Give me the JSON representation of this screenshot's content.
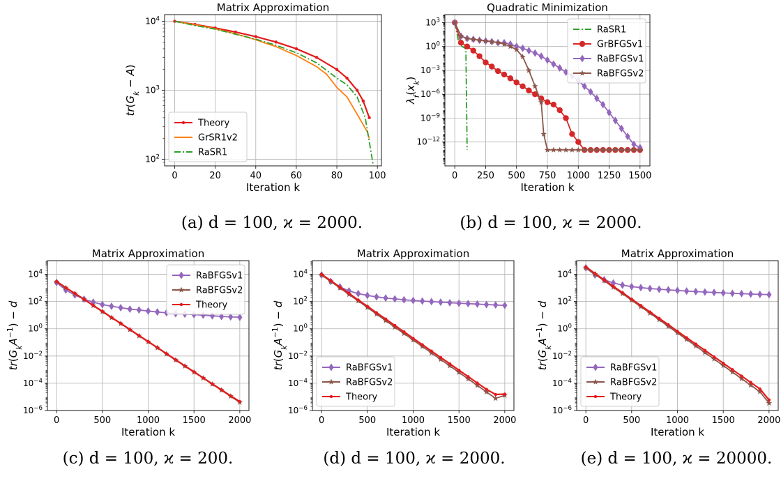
{
  "chart_data": [
    {
      "type": "line",
      "title": "Matrix Approximation",
      "xlabel": "Iteration k",
      "ylabel": "tr(G_k − A)",
      "xlim": [
        -5,
        102
      ],
      "ylim": [
        80,
        12500
      ],
      "yscale": "log",
      "xticks": [
        0,
        20,
        40,
        60,
        80,
        100
      ],
      "yticks": [
        100,
        1000,
        10000
      ],
      "grid": true,
      "legend_position": "lower-left",
      "caption": "(a) d = 100, ϰ = 2000.",
      "series": [
        {
          "name": "Theory",
          "color": "#e41a1c",
          "marker": "dot",
          "style": "solid",
          "x": [
            0,
            10,
            20,
            30,
            40,
            50,
            60,
            70,
            80,
            85,
            90,
            93,
            96
          ],
          "y": [
            10000,
            9000,
            8000,
            7000,
            6000,
            5000,
            4000,
            3000,
            2000,
            1500,
            1000,
            700,
            400
          ]
        },
        {
          "name": "GrSR1v2",
          "color": "#ff7f0e",
          "marker": "none",
          "style": "solid",
          "x": [
            0,
            10,
            20,
            30,
            40,
            45,
            50,
            55,
            60,
            70,
            75,
            80,
            85,
            90,
            95,
            96
          ],
          "y": [
            10000,
            8900,
            7800,
            6600,
            5400,
            4800,
            4300,
            3700,
            3200,
            2200,
            1700,
            1100,
            800,
            450,
            250,
            200
          ]
        },
        {
          "name": "RaSR1",
          "color": "#2ca02c",
          "marker": "none",
          "style": "dashdot",
          "x": [
            0,
            10,
            20,
            30,
            40,
            50,
            60,
            70,
            80,
            85,
            90,
            94,
            96,
            98
          ],
          "y": [
            10000,
            8700,
            7700,
            6500,
            5500,
            4500,
            3500,
            2500,
            1500,
            1200,
            800,
            400,
            180,
            80
          ]
        }
      ]
    },
    {
      "type": "line",
      "title": "Quadratic Minimization",
      "xlabel": "Iteration k",
      "ylabel": "λ_f(x_k)",
      "xlim": [
        -80,
        1580
      ],
      "ylim": [
        1e-15,
        10000.0
      ],
      "yscale": "log",
      "xticks": [
        0,
        250,
        500,
        750,
        1000,
        1250,
        1500
      ],
      "yticks": [
        1e-12,
        1e-09,
        1e-06,
        0.001,
        1,
        1000
      ],
      "ytick_labels": [
        "10^-12",
        "10^-9",
        "10^-6",
        "10^-3",
        "10^0",
        "10^3"
      ],
      "grid": true,
      "legend_position": "upper-right",
      "caption": "(b) d = 100, ϰ = 2000.",
      "series": [
        {
          "name": "RaSR1",
          "color": "#2ca02c",
          "marker": "none",
          "style": "dashdot",
          "x": [
            0,
            30,
            60,
            90,
            100
          ],
          "y": [
            1000,
            5,
            1,
            0.5,
            1e-13
          ]
        },
        {
          "name": "GrBFGSv1",
          "color": "#d62728",
          "marker": "circle",
          "style": "solid",
          "x": [
            0,
            50,
            100,
            150,
            200,
            250,
            300,
            350,
            400,
            450,
            500,
            550,
            600,
            650,
            700,
            750,
            800,
            850,
            900,
            950,
            1000,
            1050,
            1100,
            1150,
            1200,
            1250,
            1300,
            1350,
            1400,
            1450,
            1500
          ],
          "y": [
            1000,
            3,
            1,
            0.3,
            0.06,
            0.01,
            0.003,
            0.0008,
            0.0003,
            0.0001,
            3e-05,
            1e-05,
            3e-06,
            1e-06,
            3e-07,
            1e-07,
            5e-08,
            1e-08,
            1e-09,
            1e-11,
            1e-12,
            1e-13,
            1e-13,
            1e-13,
            1e-13,
            1e-13,
            1e-13,
            1e-13,
            1e-13,
            1e-13,
            1e-13
          ]
        },
        {
          "name": "RaBFGSv1",
          "color": "#9467bd",
          "marker": "diamond",
          "style": "solid",
          "x": [
            0,
            50,
            100,
            150,
            200,
            250,
            300,
            350,
            400,
            450,
            500,
            550,
            600,
            650,
            700,
            750,
            800,
            850,
            900,
            950,
            1000,
            1050,
            1100,
            1150,
            1200,
            1250,
            1300,
            1350,
            1400,
            1450,
            1500
          ],
          "y": [
            1000,
            20,
            10,
            8,
            6,
            5,
            4,
            3,
            3,
            2,
            1,
            0.6,
            0.3,
            0.15,
            0.06,
            0.02,
            0.006,
            0.002,
            0.0006,
            0.0002,
            5e-05,
            1e-05,
            2e-06,
            3e-07,
            5e-08,
            5e-09,
            5e-10,
            5e-11,
            5e-12,
            5e-13,
            2e-13
          ]
        },
        {
          "name": "RaBFGSv2",
          "color": "#8c564b",
          "marker": "star",
          "style": "solid",
          "x": [
            0,
            50,
            100,
            150,
            200,
            250,
            300,
            350,
            400,
            450,
            500,
            550,
            600,
            650,
            700,
            720,
            750,
            800,
            850,
            900,
            950,
            1000,
            1050,
            1100,
            1150,
            1200,
            1250,
            1300,
            1350,
            1400,
            1450,
            1500
          ],
          "y": [
            1000,
            20,
            10,
            8,
            6,
            5,
            4,
            3,
            2,
            1,
            0.4,
            0.05,
            0.001,
            1e-05,
            1e-07,
            1e-11,
            1e-13,
            1e-13,
            1e-13,
            1e-13,
            1e-13,
            1e-13,
            1e-13,
            1e-13,
            1e-13,
            1e-13,
            1e-13,
            1e-13,
            1e-13,
            1e-13,
            1e-13,
            1e-13
          ]
        }
      ]
    },
    {
      "type": "line",
      "title": "Matrix Approximation",
      "xlabel": "Iteration k",
      "ylabel": "tr(G_k A^{-1}) − d",
      "xlim": [
        -100,
        2100
      ],
      "ylim": [
        1e-06,
        100000.0
      ],
      "yscale": "log",
      "xticks": [
        0,
        500,
        1000,
        1500,
        2000
      ],
      "yticks": [
        1e-06,
        0.0001,
        0.01,
        1,
        100,
        10000
      ],
      "ytick_labels": [
        "10^-6",
        "10^-4",
        "10^-2",
        "10^0",
        "10^2",
        "10^4"
      ],
      "grid": true,
      "legend_position": "upper-right",
      "caption": "(c) d = 100, ϰ = 200.",
      "series": [
        {
          "name": "RaBFGSv1",
          "color": "#9467bd",
          "marker": "diamond",
          "style": "solid",
          "x": [
            0,
            100,
            200,
            300,
            400,
            500,
            600,
            700,
            800,
            900,
            1000,
            1100,
            1200,
            1300,
            1400,
            1500,
            1600,
            1700,
            1800,
            1900,
            2000
          ],
          "y": [
            2500,
            700,
            300,
            150,
            90,
            60,
            45,
            35,
            28,
            24,
            20,
            17,
            15,
            13,
            12,
            11,
            10,
            9,
            8,
            7.5,
            7
          ]
        },
        {
          "name": "RaBFGSv2",
          "color": "#8c564b",
          "marker": "star",
          "style": "solid",
          "x": [
            0,
            100,
            200,
            300,
            400,
            500,
            600,
            700,
            800,
            900,
            1000,
            1100,
            1200,
            1300,
            1400,
            1500,
            1600,
            1700,
            1800,
            1900,
            2000
          ],
          "y": [
            2800,
            1000,
            380,
            140,
            50,
            18,
            6.5,
            2.4,
            0.85,
            0.3,
            0.11,
            0.04,
            0.014,
            0.005,
            0.0018,
            0.00065,
            0.00024,
            8.5e-05,
            3.1e-05,
            1.1e-05,
            4e-06
          ]
        },
        {
          "name": "Theory",
          "color": "#e41a1c",
          "marker": "dot",
          "style": "solid",
          "x": [
            0,
            100,
            200,
            300,
            400,
            500,
            600,
            700,
            800,
            900,
            1000,
            1100,
            1200,
            1300,
            1400,
            1500,
            1600,
            1700,
            1800,
            1900,
            2000
          ],
          "y": [
            3000,
            1050,
            400,
            145,
            52,
            19,
            6.8,
            2.5,
            0.9,
            0.32,
            0.115,
            0.042,
            0.015,
            0.0054,
            0.0019,
            0.0007,
            0.00025,
            9e-05,
            3.3e-05,
            1.2e-05,
            4.5e-06
          ]
        }
      ]
    },
    {
      "type": "line",
      "title": "Matrix Approximation",
      "xlabel": "Iteration k",
      "ylabel": "tr(G_k A^{-1}) − d",
      "xlim": [
        -100,
        2100
      ],
      "ylim": [
        1e-06,
        100000.0
      ],
      "yscale": "log",
      "xticks": [
        0,
        500,
        1000,
        1500,
        2000
      ],
      "yticks": [
        1e-06,
        0.0001,
        0.01,
        1,
        100,
        10000
      ],
      "ytick_labels": [
        "10^-6",
        "10^-4",
        "10^-2",
        "10^0",
        "10^2",
        "10^4"
      ],
      "grid": true,
      "legend_position": "lower-left",
      "caption": "(d) d = 100, ϰ = 2000.",
      "series": [
        {
          "name": "RaBFGSv1",
          "color": "#9467bd",
          "marker": "diamond",
          "style": "solid",
          "x": [
            0,
            100,
            200,
            300,
            400,
            500,
            600,
            700,
            800,
            900,
            1000,
            1100,
            1200,
            1300,
            1400,
            1500,
            1600,
            1700,
            1800,
            1900,
            2000
          ],
          "y": [
            9000,
            3000,
            1200,
            600,
            380,
            280,
            220,
            180,
            155,
            135,
            120,
            108,
            98,
            90,
            82,
            75,
            70,
            65,
            60,
            56,
            52
          ]
        },
        {
          "name": "RaBFGSv2",
          "color": "#8c564b",
          "marker": "star",
          "style": "solid",
          "x": [
            0,
            100,
            200,
            300,
            400,
            500,
            600,
            700,
            800,
            900,
            1000,
            1100,
            1200,
            1300,
            1400,
            1500,
            1600,
            1700,
            1800,
            1900,
            2000
          ],
          "y": [
            9000,
            3000,
            1000,
            330,
            110,
            37,
            12,
            4,
            1.3,
            0.45,
            0.15,
            0.05,
            0.017,
            0.0056,
            0.0019,
            0.00063,
            0.00021,
            7e-05,
            2.3e-05,
            7.8e-06,
            1.3e-05
          ]
        },
        {
          "name": "Theory",
          "color": "#e41a1c",
          "marker": "dot",
          "style": "solid",
          "x": [
            0,
            100,
            200,
            300,
            400,
            500,
            600,
            700,
            800,
            900,
            1000,
            1100,
            1200,
            1300,
            1400,
            1500,
            1600,
            1700,
            1800,
            1900,
            2000
          ],
          "y": [
            10000,
            3400,
            1150,
            390,
            130,
            45,
            15,
            5.2,
            1.75,
            0.6,
            0.2,
            0.068,
            0.023,
            0.0079,
            0.0027,
            0.00091,
            0.00031,
            0.000105,
            3.6e-05,
            1.5e-05,
            1.6e-05
          ]
        }
      ]
    },
    {
      "type": "line",
      "title": "Matrix Approximation",
      "xlabel": "Iteration k",
      "ylabel": "tr(G_k A^{-1}) − d",
      "xlim": [
        -100,
        2100
      ],
      "ylim": [
        1e-06,
        100000.0
      ],
      "yscale": "log",
      "xticks": [
        0,
        500,
        1000,
        1500,
        2000
      ],
      "yticks": [
        1e-06,
        0.0001,
        0.01,
        1,
        100,
        10000
      ],
      "ytick_labels": [
        "10^-6",
        "10^-4",
        "10^-2",
        "10^0",
        "10^2",
        "10^4"
      ],
      "grid": true,
      "legend_position": "lower-left",
      "caption": "(e) d = 100, ϰ = 20000.",
      "series": [
        {
          "name": "RaBFGSv1",
          "color": "#9467bd",
          "marker": "diamond",
          "style": "solid",
          "x": [
            0,
            100,
            200,
            300,
            400,
            500,
            600,
            700,
            800,
            900,
            1000,
            1100,
            1200,
            1300,
            1400,
            1500,
            1600,
            1700,
            1800,
            1900,
            2000
          ],
          "y": [
            30000,
            9000,
            4000,
            2300,
            1600,
            1250,
            1050,
            900,
            800,
            720,
            650,
            590,
            540,
            500,
            460,
            430,
            400,
            380,
            355,
            335,
            320
          ]
        },
        {
          "name": "RaBFGSv2",
          "color": "#8c564b",
          "marker": "star",
          "style": "solid",
          "x": [
            0,
            100,
            200,
            300,
            400,
            500,
            600,
            700,
            800,
            900,
            1000,
            1100,
            1200,
            1300,
            1400,
            1500,
            1600,
            1700,
            1800,
            1900,
            2000
          ],
          "y": [
            30000,
            10000,
            3400,
            1100,
            380,
            125,
            42,
            14,
            4.6,
            1.5,
            0.5,
            0.165,
            0.055,
            0.018,
            0.006,
            0.002,
            0.00066,
            0.00022,
            7.3e-05,
            2.4e-05,
            3.5e-06
          ]
        },
        {
          "name": "Theory",
          "color": "#e41a1c",
          "marker": "dot",
          "style": "solid",
          "x": [
            0,
            100,
            200,
            300,
            400,
            500,
            600,
            700,
            800,
            900,
            1000,
            1100,
            1200,
            1300,
            1400,
            1500,
            1600,
            1700,
            1800,
            1900,
            2000
          ],
          "y": [
            35000,
            11500,
            3900,
            1300,
            450,
            150,
            51,
            17,
            5.8,
            2,
            0.66,
            0.22,
            0.076,
            0.026,
            0.0088,
            0.003,
            0.001,
            0.00034,
            0.000115,
            3.9e-05,
            6e-06
          ]
        }
      ]
    }
  ]
}
